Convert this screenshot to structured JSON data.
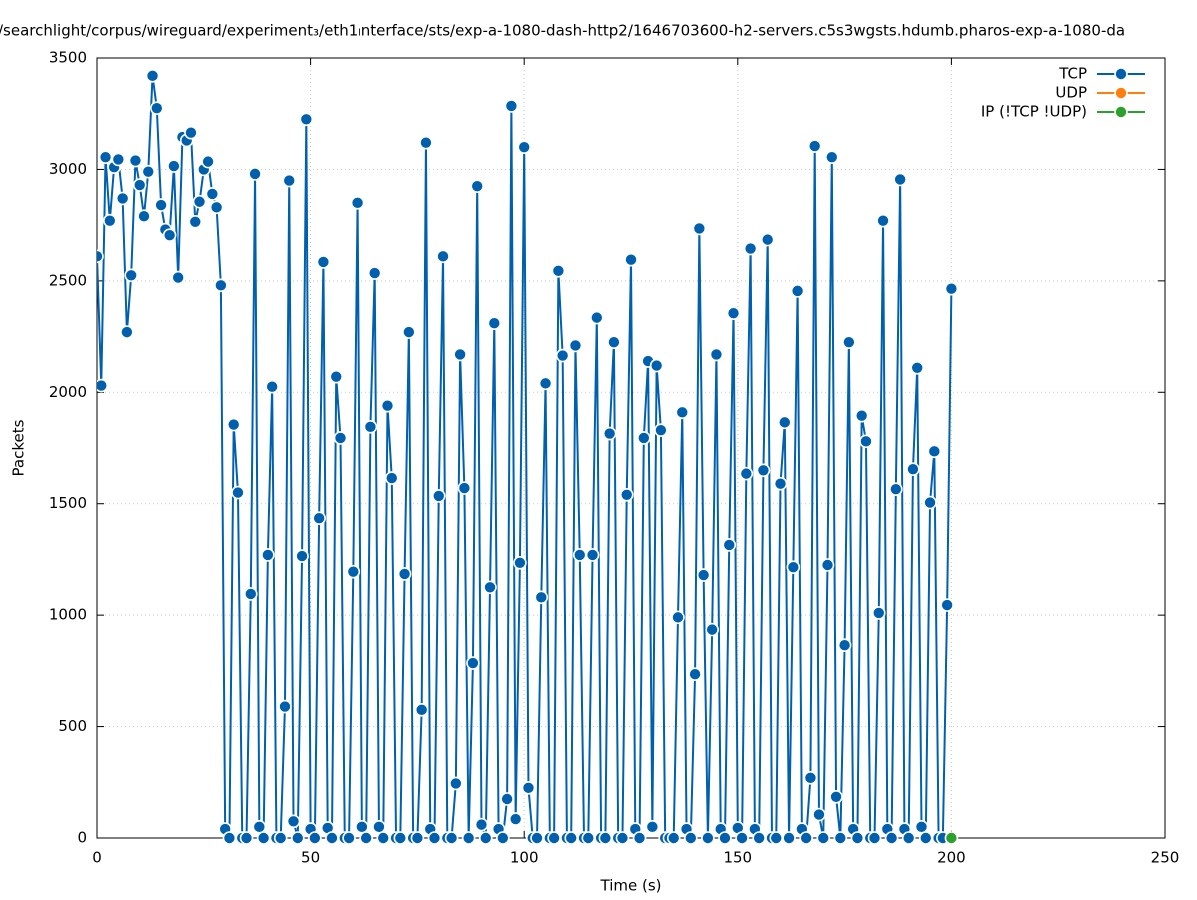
{
  "chart_data": {
    "type": "line",
    "title": "/searchlight/corpus/wireguard/experiment₃/eth1ₗnterface/sts/exp-a-1080-dash-http2/1646703600-h2-servers.c5s3wgsts.hdumb.pharos-exp-a-1080-da",
    "x_label": "Time (s)",
    "y_label": "Packets",
    "xlim": [
      0,
      250
    ],
    "xticks": [
      0,
      50,
      100,
      150,
      200,
      250
    ],
    "ylim": [
      0,
      3500
    ],
    "yticks": [
      0,
      500,
      1000,
      1500,
      2000,
      2500,
      3000,
      3500
    ],
    "grid": true,
    "legend": "top-right",
    "series": [
      {
        "name": "TCP",
        "color": "#0060ad",
        "x": [
          0,
          1,
          2,
          3,
          4,
          5,
          6,
          7,
          8,
          9,
          10,
          11,
          12,
          13,
          14,
          15,
          16,
          17,
          18,
          19,
          20,
          21,
          22,
          23,
          24,
          25,
          26,
          27,
          28,
          29,
          30,
          31,
          32,
          33,
          34,
          35,
          36,
          37,
          38,
          39,
          40,
          41,
          42,
          43,
          44,
          45,
          46,
          47,
          48,
          49,
          50,
          51,
          52,
          53,
          54,
          55,
          56,
          57,
          58,
          59,
          60,
          61,
          62,
          63,
          64,
          65,
          66,
          67,
          68,
          69,
          70,
          71,
          72,
          73,
          74,
          75,
          76,
          77,
          78,
          79,
          80,
          81,
          82,
          83,
          84,
          85,
          86,
          87,
          88,
          89,
          90,
          91,
          92,
          93,
          94,
          95,
          96,
          97,
          98,
          99,
          100,
          101,
          102,
          103,
          104,
          105,
          106,
          107,
          108,
          109,
          110,
          111,
          112,
          113,
          114,
          115,
          116,
          117,
          118,
          119,
          120,
          121,
          122,
          123,
          124,
          125,
          126,
          127,
          128,
          129,
          130,
          131,
          132,
          133,
          134,
          135,
          136,
          137,
          138,
          139,
          140,
          141,
          142,
          143,
          144,
          145,
          146,
          147,
          148,
          149,
          150,
          151,
          152,
          153,
          154,
          155,
          156,
          157,
          158,
          159,
          160,
          161,
          162,
          163,
          164,
          165,
          166,
          167,
          168,
          169,
          170,
          171,
          172,
          173,
          174,
          175,
          176,
          177,
          178,
          179,
          180,
          181,
          182,
          183,
          184,
          185,
          186,
          187,
          188,
          189,
          190,
          191,
          192,
          193,
          194,
          195,
          196,
          197,
          198,
          199,
          200
        ],
        "values": [
          2610,
          2030,
          3055,
          2770,
          3010,
          3045,
          2870,
          2270,
          2525,
          3040,
          2930,
          2790,
          2990,
          3420,
          3275,
          2840,
          2730,
          2705,
          3015,
          2515,
          3145,
          3130,
          3165,
          2765,
          2855,
          3000,
          3035,
          2890,
          2830,
          2480,
          40,
          0,
          1855,
          1550,
          0,
          0,
          1095,
          2980,
          50,
          0,
          1270,
          2025,
          0,
          0,
          590,
          2950,
          75,
          0,
          1265,
          3225,
          40,
          0,
          1435,
          2585,
          45,
          0,
          2070,
          1795,
          0,
          0,
          1195,
          2850,
          50,
          0,
          1845,
          2535,
          50,
          0,
          1940,
          1615,
          0,
          0,
          1185,
          2270,
          0,
          0,
          575,
          3120,
          40,
          0,
          1535,
          2610,
          0,
          0,
          245,
          2170,
          1570,
          0,
          785,
          2925,
          60,
          0,
          1125,
          2310,
          40,
          0,
          175,
          3285,
          85,
          1235,
          3100,
          225,
          0,
          0,
          1080,
          2040,
          0,
          0,
          2545,
          2165,
          0,
          0,
          2210,
          1270,
          0,
          0,
          1270,
          2335,
          0,
          0,
          1815,
          2225,
          0,
          0,
          1540,
          2595,
          40,
          0,
          1795,
          2140,
          50,
          2120,
          1830,
          0,
          0,
          0,
          990,
          1910,
          40,
          0,
          735,
          2735,
          1180,
          0,
          935,
          2170,
          40,
          0,
          1315,
          2355,
          45,
          0,
          1635,
          2645,
          40,
          0,
          1650,
          2685,
          0,
          0,
          1590,
          1865,
          0,
          1215,
          2455,
          40,
          0,
          270,
          3105,
          105,
          0,
          1225,
          3055,
          185,
          0,
          865,
          2225,
          40,
          0,
          1895,
          1780,
          0,
          0,
          1010,
          2770,
          40,
          0,
          1565,
          2955,
          40,
          0,
          1655,
          2110,
          50,
          0,
          1505,
          1735,
          0,
          0,
          1045,
          2465
        ]
      },
      {
        "name": "UDP",
        "color": "#ff7f0e",
        "x": [],
        "values": []
      },
      {
        "name": "IP (!TCP  !UDP)",
        "color": "#2ca02c",
        "x": [
          200
        ],
        "values": [
          0
        ]
      }
    ]
  }
}
